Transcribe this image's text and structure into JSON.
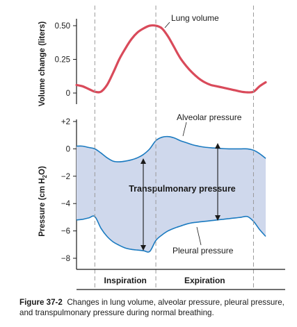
{
  "caption": {
    "label": "Figure 37-2",
    "text": "Changes in lung volume, alveolar pressure, pleural pressure, and transpulmonary pressure during normal breathing."
  },
  "chart_data": [
    {
      "type": "line",
      "panel": "top",
      "ylabel": "Volume change (liters)",
      "ylim": [
        0,
        0.5
      ],
      "yticks": [
        "0.50",
        "0.25",
        "0"
      ],
      "x_unit": "s",
      "x": [
        0,
        0.1,
        0.2,
        0.3,
        0.4,
        0.5,
        0.6,
        0.7,
        0.8,
        0.9,
        1.0,
        1.1,
        1.2,
        1.3,
        1.4,
        1.5,
        1.6,
        1.7,
        1.8,
        1.9,
        2.0,
        2.1,
        2.2,
        2.3,
        2.4,
        2.5,
        2.6,
        2.7,
        2.8,
        2.9,
        3.0,
        3.1
      ],
      "series": [
        {
          "name": "Lung volume",
          "values": [
            0.06,
            0.05,
            0.03,
            0.01,
            0.01,
            0.06,
            0.15,
            0.25,
            0.33,
            0.4,
            0.45,
            0.48,
            0.5,
            0.5,
            0.48,
            0.42,
            0.34,
            0.26,
            0.2,
            0.15,
            0.11,
            0.08,
            0.06,
            0.05,
            0.04,
            0.03,
            0.02,
            0.01,
            0.005,
            0.01,
            0.05,
            0.08
          ],
          "color": "#d94a5a"
        }
      ]
    },
    {
      "type": "area",
      "panel": "bottom",
      "ylabel": "Pressure (cm H2O)",
      "ylim": [
        -8,
        2
      ],
      "yticks": [
        "+2",
        "0",
        "−2",
        "−4",
        "−6",
        "−8"
      ],
      "x": [
        0,
        0.1,
        0.2,
        0.3,
        0.4,
        0.5,
        0.6,
        0.7,
        0.8,
        0.9,
        1.0,
        1.1,
        1.2,
        1.3,
        1.4,
        1.5,
        1.6,
        1.7,
        1.8,
        1.9,
        2.0,
        2.1,
        2.2,
        2.3,
        2.4,
        2.5,
        2.6,
        2.7,
        2.8,
        2.9,
        3.0,
        3.1
      ],
      "series": [
        {
          "name": "Alveolar pressure",
          "values": [
            0.2,
            0.2,
            0.1,
            0.0,
            -0.3,
            -0.65,
            -0.9,
            -0.95,
            -0.9,
            -0.8,
            -0.65,
            -0.4,
            0.0,
            0.6,
            0.85,
            0.9,
            0.8,
            0.6,
            0.45,
            0.3,
            0.2,
            0.12,
            0.08,
            0.05,
            0.02,
            0.0,
            0.0,
            0.0,
            0.0,
            -0.1,
            -0.35,
            -0.7
          ],
          "color": "#1a7ac0"
        },
        {
          "name": "Pleural pressure",
          "values": [
            -5.2,
            -5.15,
            -5.05,
            -4.95,
            -5.8,
            -6.4,
            -6.8,
            -7.05,
            -7.25,
            -7.35,
            -7.4,
            -7.45,
            -7.5,
            -6.7,
            -6.3,
            -6.0,
            -5.8,
            -5.65,
            -5.5,
            -5.4,
            -5.35,
            -5.3,
            -5.25,
            -5.2,
            -5.15,
            -5.1,
            -5.05,
            -5.0,
            -4.95,
            -5.3,
            -5.9,
            -6.4
          ],
          "color": "#1a7ac0"
        }
      ],
      "fill_color": "#cfd8ec",
      "annotations": [
        "Transpulmonary pressure"
      ]
    }
  ],
  "phases": [
    {
      "label": "Inspiration",
      "x_start": 0.3,
      "x_end": 1.3
    },
    {
      "label": "Expiration",
      "x_start": 1.3,
      "x_end": 2.9
    }
  ],
  "colors": {
    "lung_volume": "#d94a5a",
    "pressure_lines": "#1a7ac0",
    "fill": "#cfd8ec",
    "dashed": "#9a9a9a"
  }
}
